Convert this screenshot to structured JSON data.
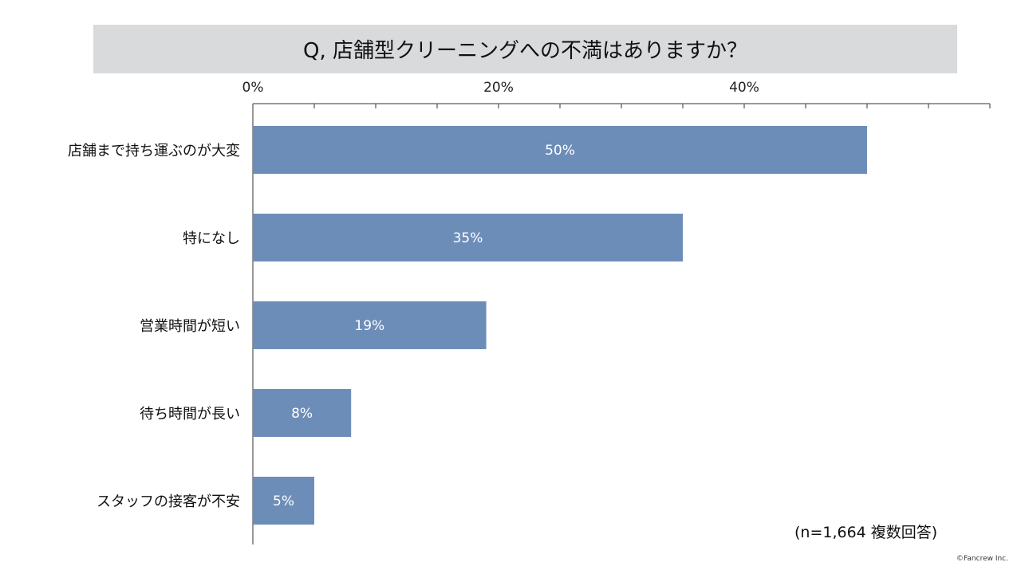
{
  "chart_data": {
    "type": "bar",
    "orientation": "horizontal",
    "title": "Q, 店舗型クリーニングへの不満はありますか？",
    "categories": [
      "店舗まで持ち運ぶのが大変",
      "特になし",
      "営業時間が短い",
      "待ち時間が長い",
      "スタッフの接客が不安"
    ],
    "values": [
      50,
      35,
      19,
      8,
      5
    ],
    "value_labels": [
      "50%",
      "35%",
      "19%",
      "8%",
      "5%"
    ],
    "xlim": [
      0,
      60
    ],
    "tick_labels": [
      "0%",
      "20%",
      "40%"
    ],
    "tick_values": [
      0,
      20,
      40
    ],
    "bar_color": "#6d8db9",
    "grid": false,
    "axis_position": "top"
  },
  "note": "(n=1,664 複数回答)",
  "copyright": "©Fancrew Inc."
}
